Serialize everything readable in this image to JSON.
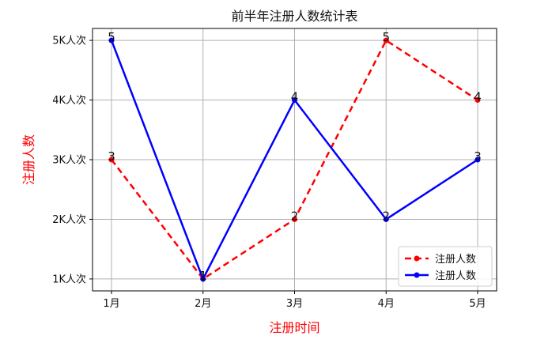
{
  "chart_data": {
    "type": "line",
    "title": "前半年注册人数统计表",
    "xlabel": "注册时间",
    "ylabel": "注册人数",
    "categories": [
      "1月",
      "2月",
      "3月",
      "4月",
      "5月"
    ],
    "y_ticks": [
      {
        "value": 1,
        "label": "1K人次"
      },
      {
        "value": 2,
        "label": "2K人次"
      },
      {
        "value": 3,
        "label": "3K人次"
      },
      {
        "value": 4,
        "label": "4K人次"
      },
      {
        "value": 5,
        "label": "5K人次"
      }
    ],
    "ylim": [
      0.8,
      5.2
    ],
    "grid": true,
    "legend_position": "lower-right",
    "series": [
      {
        "name": "注册人数",
        "values": [
          3,
          1,
          2,
          5,
          4
        ],
        "color": "#ff0000",
        "line_style": "dashed",
        "marker": "circle"
      },
      {
        "name": "注册人数",
        "values": [
          5,
          1,
          4,
          2,
          3
        ],
        "color": "#0000ff",
        "line_style": "solid",
        "marker": "circle"
      }
    ],
    "label_color": "#ff0000"
  }
}
